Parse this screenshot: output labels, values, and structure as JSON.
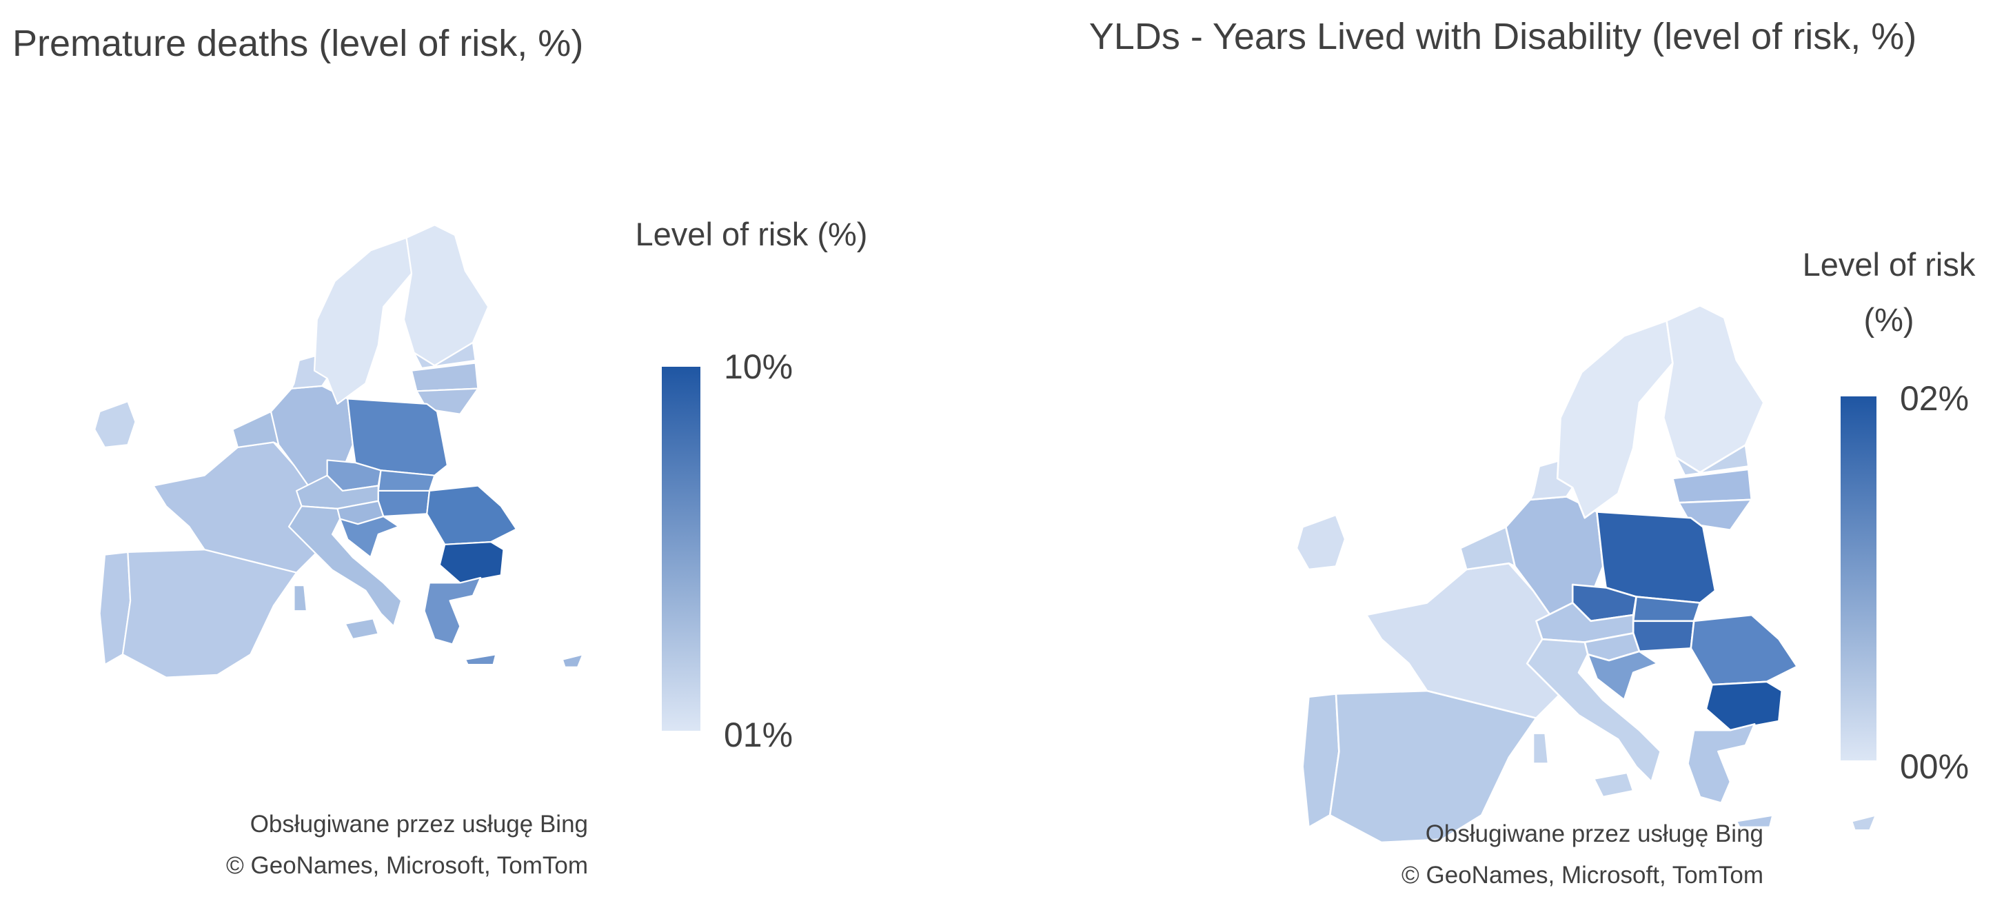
{
  "maps": [
    {
      "title": "Premature deaths (level of risk, %)",
      "legend": {
        "title": "Level of risk (%)",
        "max_label": "10%",
        "min_label": "01%"
      },
      "attribution": [
        "Obsługiwane przez usługę Bing",
        "© GeoNames, Microsoft, TomTom"
      ]
    },
    {
      "title": "YLDs - Years Lived with Disability (level of risk, %)",
      "legend": {
        "title": "Level of risk (%)",
        "max_label": "02%",
        "min_label": "00%"
      },
      "attribution": [
        "Obsługiwane przez usługę Bing",
        "© GeoNames, Microsoft, TomTom"
      ]
    }
  ]
}
